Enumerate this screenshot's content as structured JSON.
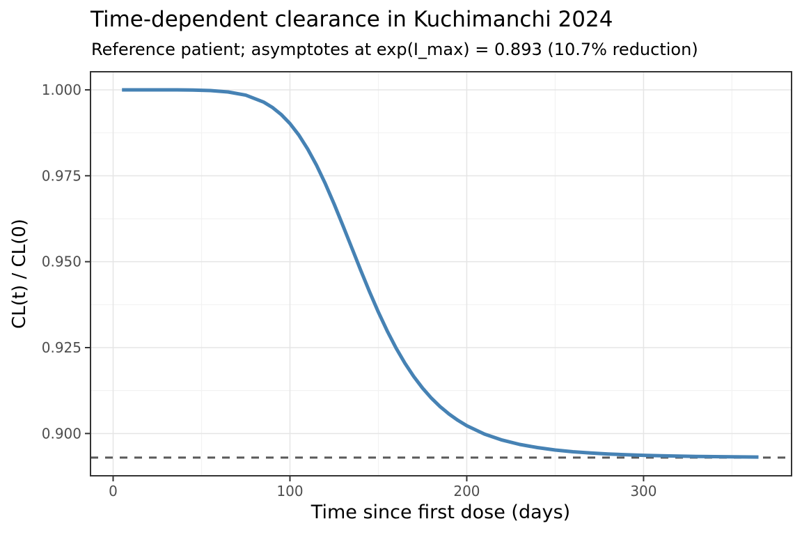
{
  "chart_data": {
    "type": "line",
    "title": "Time-dependent clearance in Kuchimanchi 2024",
    "subtitle": "Reference patient; asymptotes at exp(I_max) = 0.893 (10.7% reduction)",
    "xlabel": "Time since first dose (days)",
    "ylabel": "CL(t) / CL(0)",
    "x_domain": [
      -12.8,
      383.7
    ],
    "y_domain": [
      0.8877,
      1.00527
    ],
    "x_ticks": {
      "values": [
        0,
        100,
        200,
        300
      ],
      "labels": [
        "0",
        "100",
        "200",
        "300"
      ]
    },
    "x_minor": [
      50,
      150,
      250,
      350
    ],
    "y_ticks": {
      "values": [
        1.0,
        0.975,
        0.95,
        0.925,
        0.9
      ],
      "labels": [
        "1.000",
        "0.975",
        "0.950",
        "0.925",
        "0.900"
      ]
    },
    "y_minor": [
      0.9875,
      0.9625,
      0.9375,
      0.9125
    ],
    "asymptote": {
      "y": 0.893,
      "style": "dashed",
      "label": "exp(I_max) = 0.893"
    },
    "reduction_percent": 10.7,
    "grid": true,
    "legend": "none",
    "series": [
      {
        "name": "CL(t) / CL(0)",
        "color": "#4682B4",
        "x": [
          5,
          15,
          25,
          35,
          45,
          55,
          65,
          75,
          85,
          90,
          95,
          100,
          105,
          110,
          115,
          120,
          125,
          130,
          135,
          140,
          145,
          150,
          155,
          160,
          165,
          170,
          175,
          180,
          185,
          190,
          195,
          200,
          210,
          220,
          230,
          240,
          250,
          260,
          270,
          280,
          290,
          300,
          310,
          320,
          330,
          340,
          350,
          365
        ],
        "y": [
          1.0,
          1.0,
          1.0,
          0.99999,
          0.99995,
          0.9998,
          0.9994,
          0.99845,
          0.99648,
          0.99492,
          0.99285,
          0.99019,
          0.98686,
          0.98282,
          0.97808,
          0.97269,
          0.96676,
          0.96044,
          0.95399,
          0.94752,
          0.94125,
          0.93531,
          0.92984,
          0.92488,
          0.92046,
          0.91658,
          0.9132,
          0.91028,
          0.90778,
          0.90565,
          0.90383,
          0.90228,
          0.89985,
          0.8981,
          0.89683,
          0.8959,
          0.89521,
          0.8947,
          0.89432,
          0.89404,
          0.89382,
          0.89365,
          0.89352,
          0.89341,
          0.89333,
          0.89327,
          0.89322,
          0.89316
        ]
      }
    ],
    "colors": {
      "line": "#4682B4",
      "asymptote": "#595959",
      "grid_major": "#E5E5E5",
      "grid_minor": "#F2F2F2",
      "border": "#333333",
      "tick_label": "#4D4D4D",
      "title": "#000000",
      "background": "#FFFFFF"
    }
  }
}
